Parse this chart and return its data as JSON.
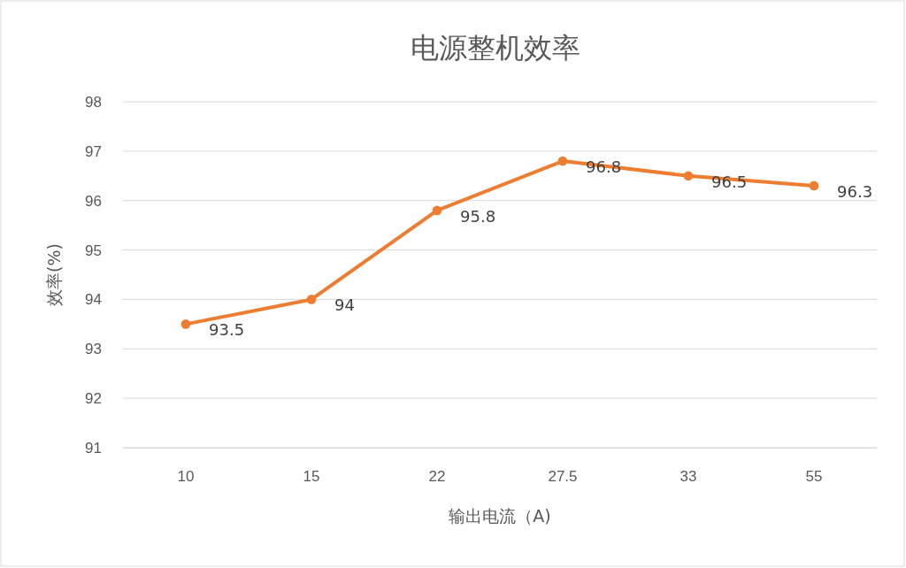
{
  "chart_data": {
    "type": "line",
    "title": "电源整机效率",
    "xlabel": "输出电流（A)",
    "ylabel": "效率(%)",
    "categories": [
      "10",
      "15",
      "22",
      "27.5",
      "33",
      "55"
    ],
    "series": [
      {
        "color": "#ed7d31",
        "values": [
          93.5,
          94,
          95.8,
          96.8,
          96.5,
          96.3
        ]
      }
    ],
    "ylim": [
      91,
      98
    ],
    "yticks": [
      91,
      92,
      93,
      94,
      95,
      96,
      97,
      98
    ],
    "grid": "y",
    "marker": "circle",
    "line_style": "solid",
    "data_labels": true
  }
}
